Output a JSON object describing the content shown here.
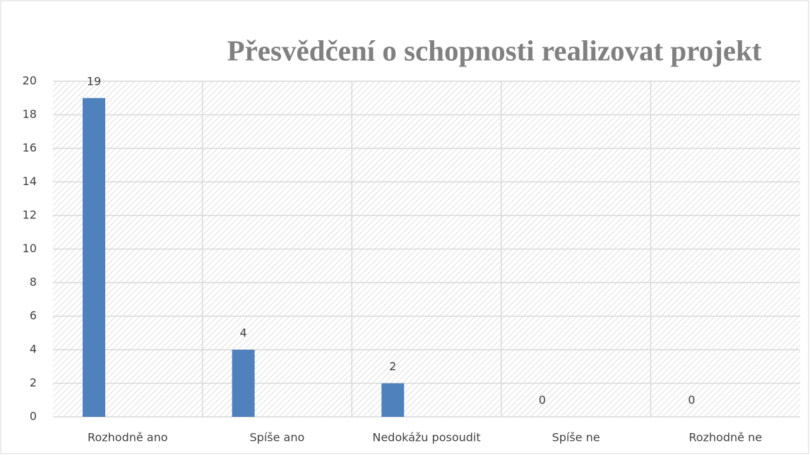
{
  "chart_data": {
    "type": "bar",
    "title": "Přesvědčení o schopnosti realizovat projekt",
    "categories": [
      "Rozhodně ano",
      "Spíše ano",
      "Nedokážu posoudit",
      "Spíše ne",
      "Rozhodně ne"
    ],
    "values": [
      19,
      4,
      2,
      0,
      0
    ],
    "color": "#4f81bd",
    "ylim": [
      0,
      20
    ],
    "yticks": [
      0,
      2,
      4,
      6,
      8,
      10,
      12,
      14,
      16,
      18,
      20
    ],
    "grid": true
  }
}
